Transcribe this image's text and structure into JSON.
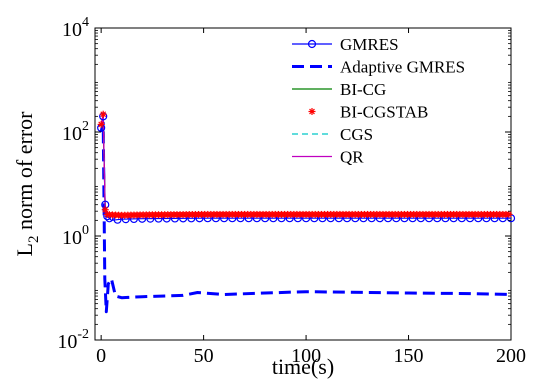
{
  "chart_data": {
    "type": "line",
    "title": "",
    "xlabel": "time(s)",
    "ylabel_main": "L",
    "ylabel_sub": "2",
    "ylabel_rest": " norm of error",
    "x_ticks": [
      0,
      50,
      100,
      150,
      200
    ],
    "xlim": [
      -3,
      200
    ],
    "y_scale": "log",
    "ylim": [
      0.01,
      10000
    ],
    "y_ticks": [
      {
        "value": 0.01,
        "base": "10",
        "exp": "-2"
      },
      {
        "value": 1,
        "base": "10",
        "exp": "0"
      },
      {
        "value": 100,
        "base": "10",
        "exp": "2"
      },
      {
        "value": 10000,
        "base": "10",
        "exp": "4"
      }
    ],
    "grid": false,
    "legend_position": "top-right",
    "series": [
      {
        "name": "GMRES",
        "color": "#0000ff",
        "style": "solid",
        "marker": "circle",
        "x": [
          0,
          1,
          2,
          3,
          5,
          10,
          20,
          50,
          100,
          150,
          200
        ],
        "y": [
          120,
          200,
          4.0,
          2.4,
          2.0,
          2.1,
          2.15,
          2.2,
          2.2,
          2.2,
          2.2
        ]
      },
      {
        "name": "Adaptive GMRES",
        "color": "#0000ff",
        "style": "dashed",
        "marker": "none",
        "x": [
          0,
          1,
          1.8,
          2.5,
          3.5,
          5,
          7,
          10,
          20,
          40,
          47,
          60,
          80,
          100,
          120,
          150,
          180,
          200
        ],
        "y": [
          100,
          150,
          0.15,
          0.035,
          0.12,
          0.15,
          0.07,
          0.065,
          0.068,
          0.072,
          0.082,
          0.075,
          0.08,
          0.085,
          0.083,
          0.08,
          0.078,
          0.075
        ]
      },
      {
        "name": "BI-CG",
        "color": "#008000",
        "style": "solid",
        "marker": "none",
        "x": [
          0,
          1,
          2,
          3,
          5,
          10,
          50,
          100,
          150,
          200
        ],
        "y": [
          130,
          200,
          3.0,
          2.5,
          2.45,
          2.45,
          2.5,
          2.5,
          2.5,
          2.5
        ]
      },
      {
        "name": "BI-CGSTAB",
        "color": "#ff0000",
        "style": "solid",
        "marker": "star",
        "x": [
          0,
          1,
          2,
          3,
          5,
          10,
          20,
          50,
          100,
          150,
          200
        ],
        "y": [
          140,
          220,
          3.2,
          2.6,
          2.55,
          2.5,
          2.55,
          2.6,
          2.6,
          2.6,
          2.6
        ]
      },
      {
        "name": "CGS",
        "color": "#00c8c8",
        "style": "dashed",
        "marker": "none",
        "x": [
          0,
          1,
          2,
          3,
          5,
          10,
          50,
          100,
          150,
          200
        ],
        "y": [
          125,
          190,
          3.0,
          2.5,
          2.45,
          2.45,
          2.5,
          2.5,
          2.5,
          2.5
        ]
      },
      {
        "name": "QR",
        "color": "#c000c0",
        "style": "solid",
        "marker": "none",
        "x": [
          0,
          1,
          2,
          3,
          5,
          10,
          50,
          100,
          150,
          200
        ],
        "y": [
          130,
          200,
          3.0,
          2.55,
          2.5,
          2.5,
          2.55,
          2.55,
          2.55,
          2.55
        ]
      }
    ]
  }
}
